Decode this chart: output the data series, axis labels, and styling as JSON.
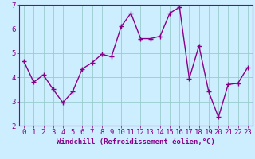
{
  "xlabel": "Windchill (Refroidissement éolien,°C)",
  "x_values": [
    0,
    1,
    2,
    3,
    4,
    5,
    6,
    7,
    8,
    9,
    10,
    11,
    12,
    13,
    14,
    15,
    16,
    17,
    18,
    19,
    20,
    21,
    22,
    23
  ],
  "y_values": [
    4.65,
    3.8,
    4.1,
    3.5,
    2.95,
    3.4,
    4.35,
    4.6,
    4.95,
    4.85,
    6.1,
    6.65,
    5.6,
    5.6,
    5.7,
    6.65,
    6.9,
    3.95,
    5.3,
    3.4,
    2.35,
    3.7,
    3.75,
    4.4
  ],
  "line_color": "#880088",
  "marker": "+",
  "marker_size": 4,
  "bg_color": "#cceeff",
  "grid_color": "#99cccc",
  "axis_color": "#880088",
  "ylim": [
    2,
    7
  ],
  "xlim": [
    -0.5,
    23.5
  ],
  "yticks": [
    2,
    3,
    4,
    5,
    6,
    7
  ],
  "xticks": [
    0,
    1,
    2,
    3,
    4,
    5,
    6,
    7,
    8,
    9,
    10,
    11,
    12,
    13,
    14,
    15,
    16,
    17,
    18,
    19,
    20,
    21,
    22,
    23
  ],
  "xlabel_fontsize": 6.5,
  "tick_fontsize": 6.5,
  "linewidth": 1.0
}
